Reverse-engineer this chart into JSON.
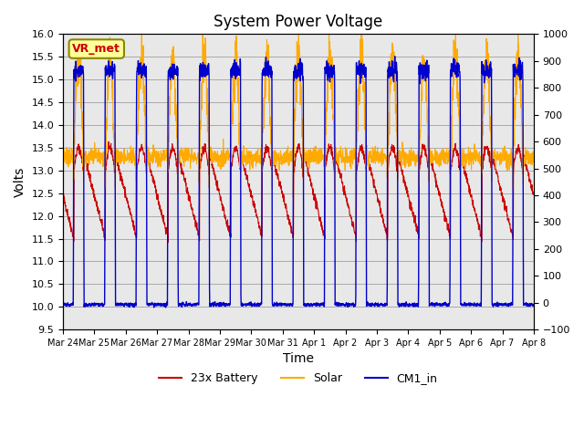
{
  "title": "System Power Voltage",
  "xlabel": "Time",
  "ylabel_left": "Volts",
  "ylim_left": [
    9.5,
    16.0
  ],
  "ylim_right": [
    -100,
    1000
  ],
  "yticks_left": [
    9.5,
    10.0,
    10.5,
    11.0,
    11.5,
    12.0,
    12.5,
    13.0,
    13.5,
    14.0,
    14.5,
    15.0,
    15.5,
    16.0
  ],
  "yticks_right": [
    -100,
    0,
    100,
    200,
    300,
    400,
    500,
    600,
    700,
    800,
    900,
    1000
  ],
  "xtick_positions": [
    0,
    1,
    2,
    3,
    4,
    5,
    6,
    7,
    8,
    9,
    10,
    11,
    12,
    13,
    14,
    15
  ],
  "xtick_labels": [
    "Mar 24",
    "Mar 25",
    "Mar 26",
    "Mar 27",
    "Mar 28",
    "Mar 29",
    "Mar 30",
    "Mar 31",
    "Apr 1",
    "Apr 2",
    "Apr 3",
    "Apr 4",
    "Apr 5",
    "Apr 6",
    "Apr 7",
    "Apr 8"
  ],
  "color_battery": "#cc0000",
  "color_solar": "#ffaa00",
  "color_cm1": "#0000cc",
  "color_grid": "#aaaaaa",
  "color_bg_plot": "#e8e8e8",
  "color_bg_fig": "#ffffff",
  "legend_labels": [
    "23x Battery",
    "Solar",
    "CM1_in"
  ],
  "annotation_text": "VR_met",
  "annotation_color": "#cc0000",
  "annotation_bg": "#ffff99",
  "annotation_border": "#888800",
  "xlim": [
    0,
    15
  ]
}
